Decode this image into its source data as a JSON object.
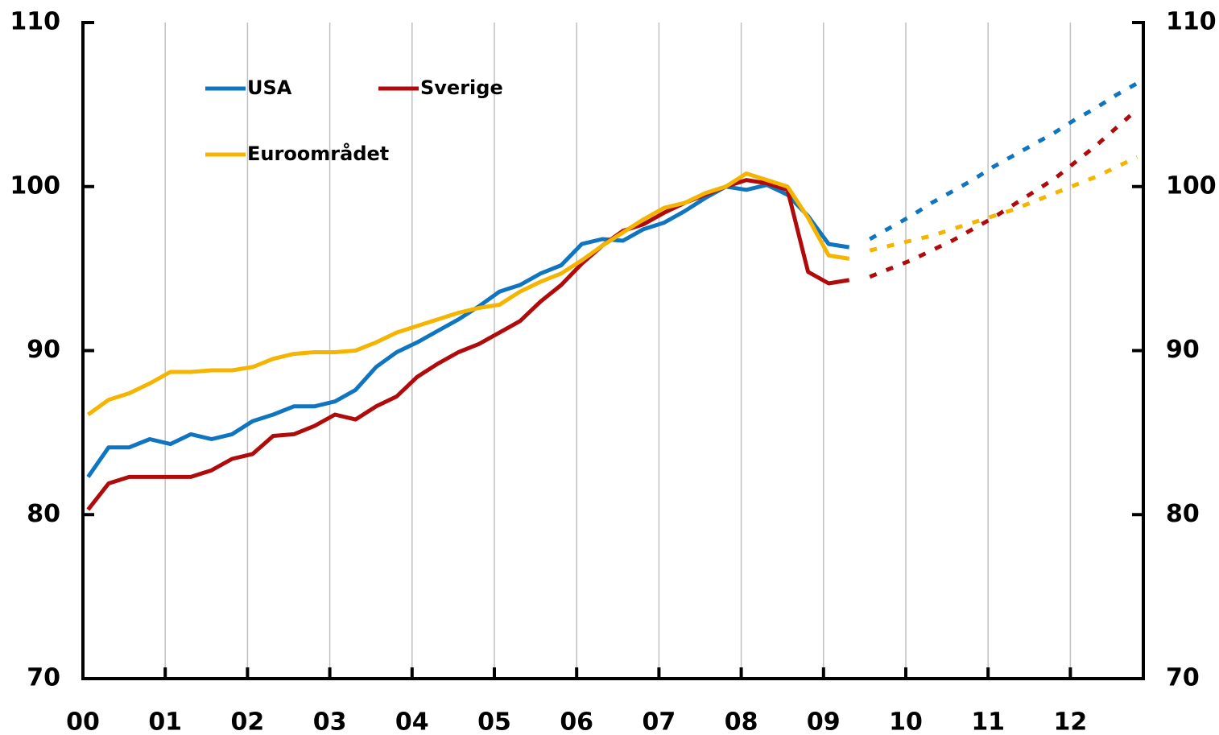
{
  "chart_data": {
    "type": "line",
    "categories": [
      "00",
      null,
      null,
      null,
      "01",
      null,
      null,
      null,
      "02",
      null,
      null,
      null,
      "03",
      null,
      null,
      null,
      "04",
      null,
      null,
      null,
      "05",
      null,
      null,
      null,
      "06",
      null,
      null,
      null,
      "07",
      null,
      null,
      null,
      "08",
      null,
      null,
      null,
      "09",
      null,
      null,
      null,
      "10",
      null,
      null,
      null,
      "11",
      null,
      null,
      null,
      "12",
      null,
      null,
      null
    ],
    "series": [
      {
        "name": "USA",
        "color": "#0f75c0",
        "values": [
          82.3,
          84.1,
          84.1,
          84.6,
          84.3,
          84.9,
          84.6,
          84.9,
          85.7,
          86.1,
          86.6,
          86.6,
          86.9,
          87.6,
          89.0,
          89.9,
          90.5,
          91.2,
          91.9,
          92.7,
          93.6,
          94.0,
          94.7,
          95.2,
          96.5,
          96.8,
          96.7,
          97.4,
          97.8,
          98.5,
          99.3,
          100.0,
          99.8,
          100.1,
          99.5,
          98.2,
          96.5,
          96.3,
          null,
          null,
          null,
          null,
          null,
          null,
          null,
          null,
          null,
          null,
          null,
          null,
          null,
          null
        ],
        "forecast_values": [
          null,
          null,
          null,
          null,
          null,
          null,
          null,
          null,
          null,
          null,
          null,
          null,
          null,
          null,
          null,
          null,
          null,
          null,
          null,
          null,
          null,
          null,
          null,
          null,
          null,
          null,
          null,
          null,
          null,
          null,
          null,
          null,
          null,
          null,
          null,
          null,
          null,
          null,
          96.8,
          97.5,
          98.2,
          99.0,
          99.7,
          100.4,
          101.2,
          101.9,
          102.6,
          103.3,
          104.1,
          104.8,
          105.6,
          106.3
        ]
      },
      {
        "name": "Sverige",
        "color": "#b00a0a",
        "values": [
          80.3,
          81.9,
          82.3,
          82.3,
          82.3,
          82.3,
          82.7,
          83.4,
          83.7,
          84.8,
          84.9,
          85.4,
          86.1,
          85.8,
          86.6,
          87.2,
          88.4,
          89.2,
          89.9,
          90.4,
          91.1,
          91.8,
          93.0,
          94.0,
          95.3,
          96.4,
          97.3,
          97.7,
          98.4,
          99.0,
          99.5,
          100.0,
          100.4,
          100.2,
          99.8,
          94.8,
          94.1,
          94.3,
          null,
          null,
          null,
          null,
          null,
          null,
          null,
          null,
          null,
          null,
          null,
          null,
          null,
          null
        ],
        "forecast_values": [
          null,
          null,
          null,
          null,
          null,
          null,
          null,
          null,
          null,
          null,
          null,
          null,
          null,
          null,
          null,
          null,
          null,
          null,
          null,
          null,
          null,
          null,
          null,
          null,
          null,
          null,
          null,
          null,
          null,
          null,
          null,
          null,
          null,
          null,
          null,
          null,
          null,
          null,
          94.5,
          95.0,
          95.5,
          96.1,
          96.7,
          97.4,
          98.1,
          98.9,
          99.7,
          100.5,
          101.5,
          102.5,
          103.6,
          104.7
        ]
      },
      {
        "name": "Euroområdet",
        "color": "#f5b400",
        "values": [
          86.1,
          87.0,
          87.4,
          88.0,
          88.7,
          88.7,
          88.8,
          88.8,
          89.0,
          89.5,
          89.8,
          89.9,
          89.9,
          90.0,
          90.5,
          91.1,
          91.5,
          91.9,
          92.3,
          92.6,
          92.8,
          93.6,
          94.2,
          94.7,
          95.5,
          96.4,
          97.2,
          98.0,
          98.7,
          99.0,
          99.6,
          100.0,
          100.8,
          100.4,
          100.0,
          98.1,
          95.8,
          95.6,
          null,
          null,
          null,
          null,
          null,
          null,
          null,
          null,
          null,
          null,
          null,
          null,
          null,
          null
        ],
        "forecast_values": [
          null,
          null,
          null,
          null,
          null,
          null,
          null,
          null,
          null,
          null,
          null,
          null,
          null,
          null,
          null,
          null,
          null,
          null,
          null,
          null,
          null,
          null,
          null,
          null,
          null,
          null,
          null,
          null,
          null,
          null,
          null,
          null,
          null,
          null,
          null,
          null,
          null,
          null,
          96.1,
          96.4,
          96.7,
          97.0,
          97.4,
          97.8,
          98.2,
          98.6,
          99.1,
          99.6,
          100.1,
          100.6,
          101.2,
          101.8
        ]
      }
    ],
    "ylim": [
      70,
      110
    ],
    "yticks": [
      70,
      80,
      90,
      100,
      110
    ],
    "y2lim": [
      70,
      110
    ],
    "y2ticks": [
      70,
      80,
      90,
      100,
      110
    ],
    "grid": true,
    "legend": "upper left"
  }
}
